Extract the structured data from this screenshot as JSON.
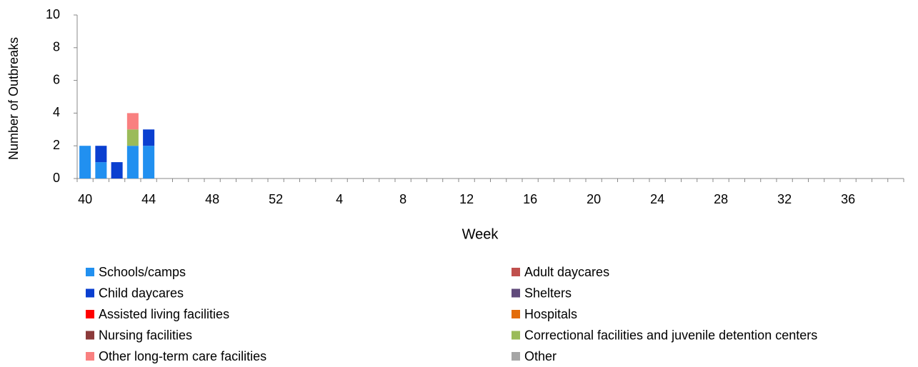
{
  "chart_data": {
    "type": "stacked_bar",
    "y_label": "Number of Outbreaks",
    "x_label": "Week",
    "categories": [
      "40",
      null,
      null,
      null,
      "44",
      null,
      null,
      null,
      "48",
      null,
      null,
      null,
      "52",
      null,
      null,
      null,
      "4",
      null,
      null,
      null,
      "8",
      null,
      null,
      null,
      "12",
      null,
      null,
      null,
      "16",
      null,
      null,
      null,
      "20",
      null,
      null,
      null,
      "24",
      null,
      null,
      null,
      "28",
      null,
      null,
      null,
      "32",
      null,
      null,
      null,
      "36",
      null,
      null,
      null
    ],
    "ylim": [
      0,
      10
    ],
    "yticks": [
      0,
      2,
      4,
      6,
      8,
      10
    ],
    "series": [
      {
        "name": "Schools/camps",
        "color": "#2190f0",
        "values": [
          2,
          1,
          0,
          2,
          2,
          0,
          0,
          0,
          0,
          0,
          0,
          0,
          0,
          0,
          0,
          0,
          0,
          0,
          0,
          0,
          0,
          0,
          0,
          0,
          0,
          0,
          0,
          0,
          0,
          0,
          0,
          0,
          0,
          0,
          0,
          0,
          0,
          0,
          0,
          0,
          0,
          0,
          0,
          0,
          0,
          0,
          0,
          0,
          0,
          0,
          0,
          0
        ]
      },
      {
        "name": "Adult daycares",
        "color": "#c0504d",
        "values": [
          0,
          0,
          0,
          0,
          0,
          0,
          0,
          0,
          0,
          0,
          0,
          0,
          0,
          0,
          0,
          0,
          0,
          0,
          0,
          0,
          0,
          0,
          0,
          0,
          0,
          0,
          0,
          0,
          0,
          0,
          0,
          0,
          0,
          0,
          0,
          0,
          0,
          0,
          0,
          0,
          0,
          0,
          0,
          0,
          0,
          0,
          0,
          0,
          0,
          0,
          0,
          0
        ]
      },
      {
        "name": "Child daycares",
        "color": "#0a3fd0",
        "values": [
          0,
          1,
          1,
          0,
          1,
          0,
          0,
          0,
          0,
          0,
          0,
          0,
          0,
          0,
          0,
          0,
          0,
          0,
          0,
          0,
          0,
          0,
          0,
          0,
          0,
          0,
          0,
          0,
          0,
          0,
          0,
          0,
          0,
          0,
          0,
          0,
          0,
          0,
          0,
          0,
          0,
          0,
          0,
          0,
          0,
          0,
          0,
          0,
          0,
          0,
          0,
          0
        ]
      },
      {
        "name": "Shelters",
        "color": "#604a7b",
        "values": [
          0,
          0,
          0,
          0,
          0,
          0,
          0,
          0,
          0,
          0,
          0,
          0,
          0,
          0,
          0,
          0,
          0,
          0,
          0,
          0,
          0,
          0,
          0,
          0,
          0,
          0,
          0,
          0,
          0,
          0,
          0,
          0,
          0,
          0,
          0,
          0,
          0,
          0,
          0,
          0,
          0,
          0,
          0,
          0,
          0,
          0,
          0,
          0,
          0,
          0,
          0,
          0
        ]
      },
      {
        "name": "Assisted living facilities",
        "color": "#ff0000",
        "values": [
          0,
          0,
          0,
          0,
          0,
          0,
          0,
          0,
          0,
          0,
          0,
          0,
          0,
          0,
          0,
          0,
          0,
          0,
          0,
          0,
          0,
          0,
          0,
          0,
          0,
          0,
          0,
          0,
          0,
          0,
          0,
          0,
          0,
          0,
          0,
          0,
          0,
          0,
          0,
          0,
          0,
          0,
          0,
          0,
          0,
          0,
          0,
          0,
          0,
          0,
          0,
          0
        ]
      },
      {
        "name": "Hospitals",
        "color": "#e36c09",
        "values": [
          0,
          0,
          0,
          0,
          0,
          0,
          0,
          0,
          0,
          0,
          0,
          0,
          0,
          0,
          0,
          0,
          0,
          0,
          0,
          0,
          0,
          0,
          0,
          0,
          0,
          0,
          0,
          0,
          0,
          0,
          0,
          0,
          0,
          0,
          0,
          0,
          0,
          0,
          0,
          0,
          0,
          0,
          0,
          0,
          0,
          0,
          0,
          0,
          0,
          0,
          0,
          0
        ]
      },
      {
        "name": "Nursing facilities",
        "color": "#8b3a3a",
        "values": [
          0,
          0,
          0,
          0,
          0,
          0,
          0,
          0,
          0,
          0,
          0,
          0,
          0,
          0,
          0,
          0,
          0,
          0,
          0,
          0,
          0,
          0,
          0,
          0,
          0,
          0,
          0,
          0,
          0,
          0,
          0,
          0,
          0,
          0,
          0,
          0,
          0,
          0,
          0,
          0,
          0,
          0,
          0,
          0,
          0,
          0,
          0,
          0,
          0,
          0,
          0,
          0
        ]
      },
      {
        "name": "Correctional facilities and juvenile detention centers",
        "color": "#9bbb59",
        "values": [
          0,
          0,
          0,
          1,
          0,
          0,
          0,
          0,
          0,
          0,
          0,
          0,
          0,
          0,
          0,
          0,
          0,
          0,
          0,
          0,
          0,
          0,
          0,
          0,
          0,
          0,
          0,
          0,
          0,
          0,
          0,
          0,
          0,
          0,
          0,
          0,
          0,
          0,
          0,
          0,
          0,
          0,
          0,
          0,
          0,
          0,
          0,
          0,
          0,
          0,
          0,
          0
        ]
      },
      {
        "name": "Other long-term care facilities",
        "color": "#f98080",
        "values": [
          0,
          0,
          0,
          1,
          0,
          0,
          0,
          0,
          0,
          0,
          0,
          0,
          0,
          0,
          0,
          0,
          0,
          0,
          0,
          0,
          0,
          0,
          0,
          0,
          0,
          0,
          0,
          0,
          0,
          0,
          0,
          0,
          0,
          0,
          0,
          0,
          0,
          0,
          0,
          0,
          0,
          0,
          0,
          0,
          0,
          0,
          0,
          0,
          0,
          0,
          0,
          0
        ]
      },
      {
        "name": "Other",
        "color": "#a5a5a5",
        "values": [
          0,
          0,
          0,
          0,
          0,
          0,
          0,
          0,
          0,
          0,
          0,
          0,
          0,
          0,
          0,
          0,
          0,
          0,
          0,
          0,
          0,
          0,
          0,
          0,
          0,
          0,
          0,
          0,
          0,
          0,
          0,
          0,
          0,
          0,
          0,
          0,
          0,
          0,
          0,
          0,
          0,
          0,
          0,
          0,
          0,
          0,
          0,
          0,
          0,
          0,
          0,
          0
        ]
      }
    ]
  }
}
